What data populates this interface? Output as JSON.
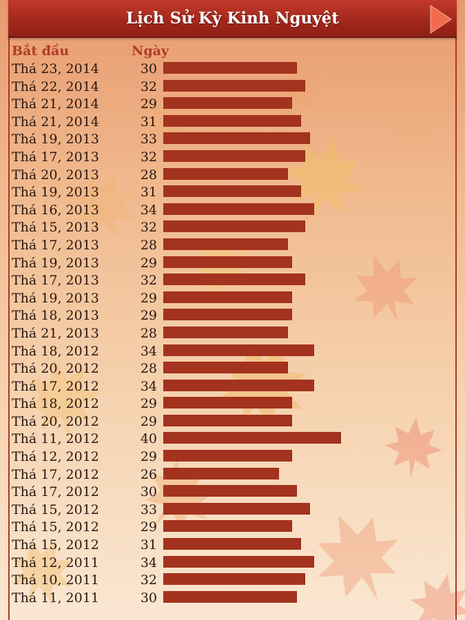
{
  "header": {
    "title": "Lịch Sử Kỳ Kinh Nguyệt",
    "next_icon": "play-arrow-icon"
  },
  "columns": {
    "start_label": "Bắt đầu",
    "days_label": "Ngày"
  },
  "colors": {
    "header": "#a4281d",
    "bar": "#a3331f",
    "column_header_text": "#b13a24",
    "text": "#2a1712"
  },
  "chart_data": {
    "type": "bar",
    "orientation": "horizontal",
    "categories": [
      "Thá 23, 2014",
      "Thá 22, 2014",
      "Thá 21, 2014",
      "Thá 21, 2014",
      "Thá 19, 2013",
      "Thá 17, 2013",
      "Thá 20, 2013",
      "Thá 19, 2013",
      "Thá 16, 2013",
      "Thá 15, 2013",
      "Thá 17, 2013",
      "Thá 19, 2013",
      "Thá 17, 2013",
      "Thá 19, 2013",
      "Thá 18, 2013",
      "Thá 21, 2013",
      "Thá 18, 2012",
      "Thá 20, 2012",
      "Thá 17, 2012",
      "Thá 18, 2012",
      "Thá 20, 2012",
      "Thá 11, 2012",
      "Thá 12, 2012",
      "Thá 17, 2012",
      "Thá 17, 2012",
      "Thá 15, 2012",
      "Thá 15, 2012",
      "Thá 15, 2012",
      "Thá 12, 2011",
      "Thá 10, 2011",
      "Thá 11, 2011"
    ],
    "values": [
      30,
      32,
      29,
      31,
      33,
      32,
      28,
      31,
      34,
      32,
      28,
      29,
      32,
      29,
      29,
      28,
      34,
      28,
      34,
      29,
      29,
      40,
      29,
      26,
      30,
      33,
      29,
      31,
      34,
      32,
      30
    ]
  }
}
